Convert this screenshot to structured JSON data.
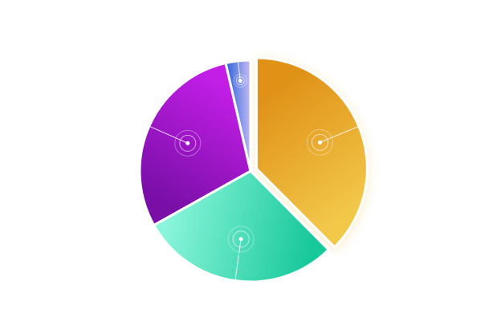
{
  "chart_data": {
    "type": "pie",
    "title": "",
    "slices": [
      {
        "value": 36.5,
        "color_start": "#f2c84a",
        "color_end": "#e09218",
        "exploded": true
      },
      {
        "value": 28.5,
        "color_start": "#8af5da",
        "color_end": "#17c89a",
        "exploded": false
      },
      {
        "value": 28.7,
        "color_start": "#c21ee6",
        "color_end": "#7a0fa8",
        "exploded": false
      },
      {
        "value": 3.5,
        "color_start": "#b7b3f2",
        "color_end": "#2f63d8",
        "exploded": false
      }
    ],
    "start_angle_deg": 0,
    "direction": "clockwise",
    "legend": "none",
    "labels": "leader-lines-only"
  }
}
